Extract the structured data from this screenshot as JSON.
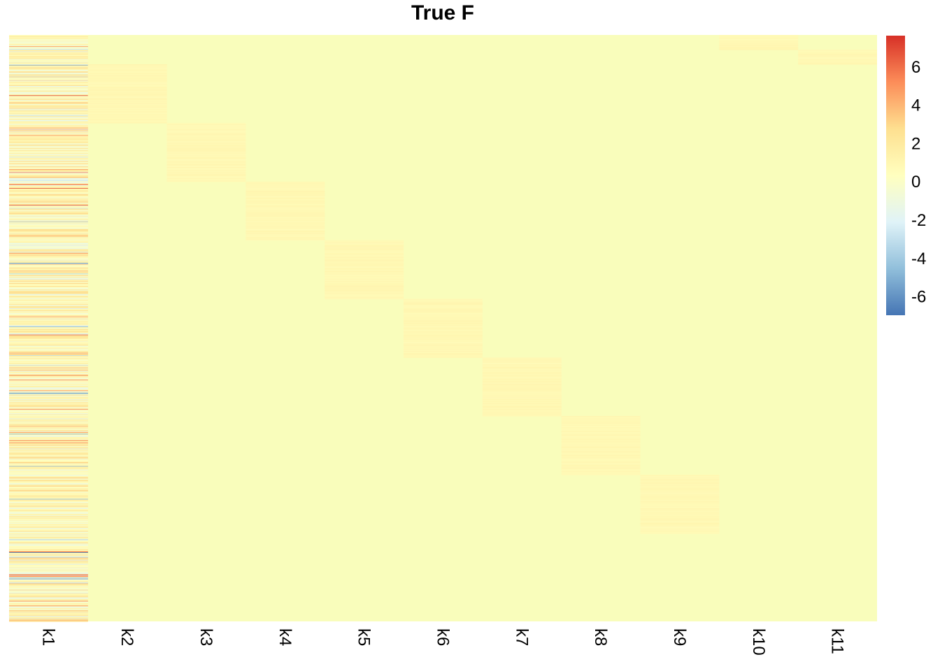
{
  "chart_data": {
    "type": "heatmap",
    "title": "True F",
    "columns": [
      "k1",
      "k2",
      "k3",
      "k4",
      "k5",
      "k6",
      "k7",
      "k8",
      "k9",
      "k10",
      "k11"
    ],
    "n_rows": 1000,
    "blocks": [
      {
        "column": "k2",
        "rows": [
          50,
          150
        ],
        "value": 0.6
      },
      {
        "column": "k3",
        "rows": [
          150,
          250
        ],
        "value": 0.6
      },
      {
        "column": "k4",
        "rows": [
          250,
          350
        ],
        "value": 0.6
      },
      {
        "column": "k5",
        "rows": [
          350,
          450
        ],
        "value": 0.6
      },
      {
        "column": "k6",
        "rows": [
          450,
          550
        ],
        "value": 0.6
      },
      {
        "column": "k7",
        "rows": [
          550,
          650
        ],
        "value": 0.6
      },
      {
        "column": "k8",
        "rows": [
          650,
          750
        ],
        "value": 0.6
      },
      {
        "column": "k9",
        "rows": [
          750,
          850
        ],
        "value": 0.6
      },
      {
        "column": "k10",
        "rows": [
          0,
          25
        ],
        "value": 0.6
      },
      {
        "column": "k11",
        "rows": [
          25,
          50
        ],
        "value": 0.6
      }
    ],
    "k1_values": "dense random values, roughly between -7 and 7, mostly near 0",
    "background_value": 0,
    "legend": {
      "position": "right",
      "ticks": [
        "6",
        "4",
        "2",
        "0",
        "-2",
        "-4",
        "-6"
      ],
      "range": [
        -7,
        7.6
      ],
      "colors": [
        "#4575B4",
        "#91BFDB",
        "#E0F3F8",
        "#FFFFBF",
        "#FEE090",
        "#FC8D59",
        "#D73027"
      ]
    }
  }
}
